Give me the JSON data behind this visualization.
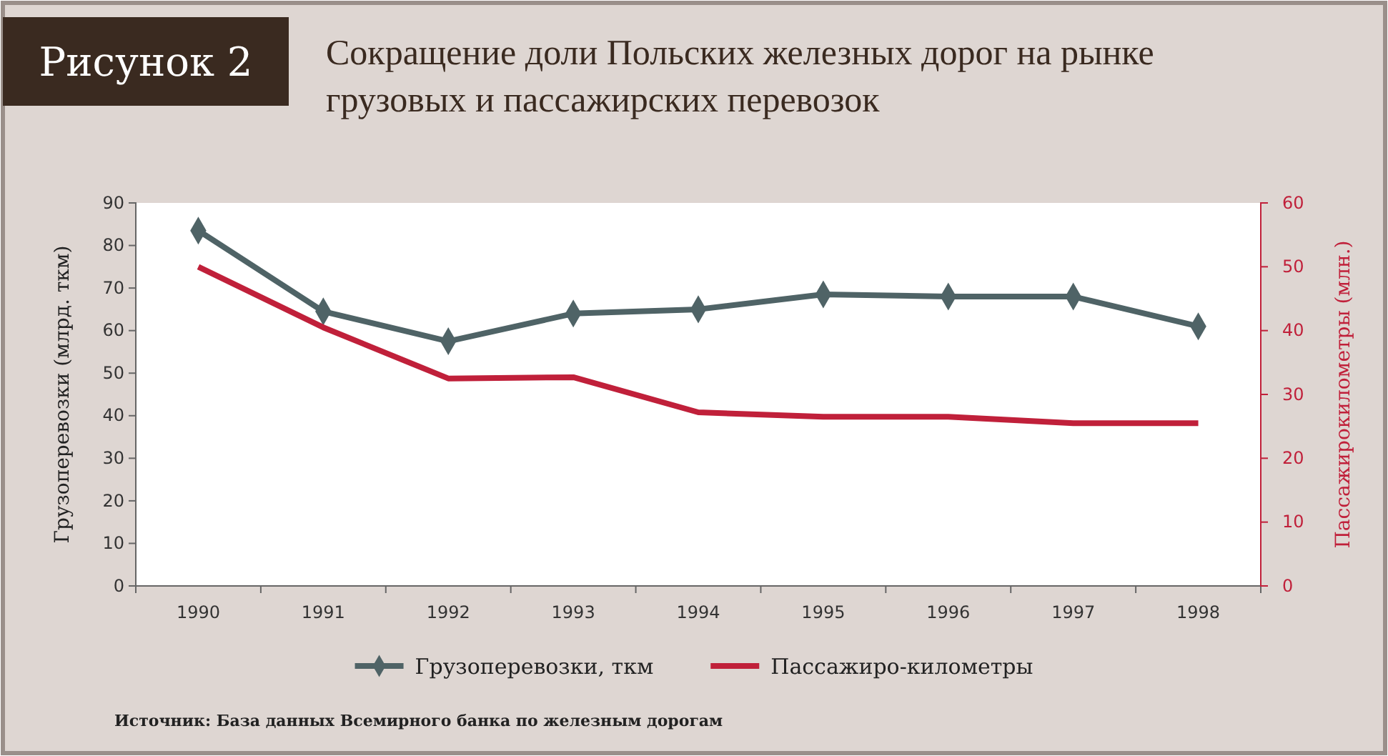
{
  "chart_data": {
    "type": "line",
    "title": "Сокращение доли Польских железных дорог на рынке грузовых и пассажирских перевозок",
    "ylabel": "Грузоперевозки (млрд. ткм)",
    "y2label": "Пассажирокилометры (млн.)",
    "annotations": [
      "Рисунок 2",
      "Источник: База данных Всемирного банка по железным дорогам"
    ],
    "categories": [
      "1990",
      "1991",
      "1992",
      "1993",
      "1994",
      "1995",
      "1996",
      "1997",
      "1998"
    ],
    "series": [
      {
        "name": "Грузоперевозки, ткм",
        "color": "#4f6366",
        "marker": "diamond",
        "values": [
          83.5,
          64.5,
          57.5,
          64,
          65,
          68.5,
          68,
          68,
          61
        ]
      },
      {
        "name": "Пассажиро-километры",
        "color": "#c0203a",
        "marker": "none",
        "axis": "y2",
        "values": [
          50,
          40.5,
          32.5,
          32.7,
          27.2,
          26.5,
          26.5,
          25.5,
          25.5
        ]
      }
    ],
    "ylim": [
      0,
      90
    ],
    "yticks": [
      0,
      10,
      20,
      30,
      40,
      50,
      60,
      70,
      80,
      90
    ],
    "y2lim": [
      0,
      60
    ],
    "y2ticks": [
      0,
      10,
      20,
      30,
      40,
      50,
      60
    ],
    "grid": false,
    "legend": "bottom",
    "line_style": "solid"
  }
}
